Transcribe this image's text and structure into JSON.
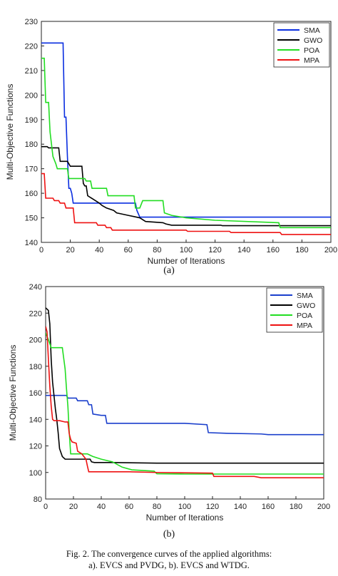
{
  "chart_data": [
    {
      "type": "line",
      "panel_label": "(a)",
      "xlabel": "Number of Iterations",
      "ylabel": "Multi-Objective Functions",
      "xlim": [
        0,
        200
      ],
      "ylim": [
        140,
        230
      ],
      "xticks": [
        0,
        20,
        40,
        60,
        80,
        100,
        120,
        140,
        160,
        180,
        200
      ],
      "yticks": [
        140,
        150,
        160,
        170,
        180,
        190,
        200,
        210,
        220,
        230
      ],
      "grid": false,
      "legend_position": "top-right",
      "series": [
        {
          "name": "SMA",
          "color": "#0a2ee0",
          "points": [
            [
              0,
              221.2
            ],
            [
              15,
              221.2
            ],
            [
              16,
              191
            ],
            [
              17,
              191
            ],
            [
              18,
              175
            ],
            [
              19,
              162
            ],
            [
              20,
              162
            ],
            [
              21,
              160
            ],
            [
              22,
              156
            ],
            [
              50,
              156
            ],
            [
              65,
              156
            ],
            [
              66,
              153
            ],
            [
              68,
              150.3
            ],
            [
              200,
              150.3
            ]
          ]
        },
        {
          "name": "GWO",
          "color": "#000000",
          "points": [
            [
              0,
              179
            ],
            [
              4,
              179
            ],
            [
              5,
              178.5
            ],
            [
              12,
              178.5
            ],
            [
              13,
              173
            ],
            [
              18,
              173
            ],
            [
              19,
              172
            ],
            [
              20,
              171
            ],
            [
              28,
              171
            ],
            [
              29,
              164
            ],
            [
              30,
              163
            ],
            [
              31,
              163
            ],
            [
              32,
              159
            ],
            [
              36,
              157.5
            ],
            [
              40,
              156
            ],
            [
              42,
              155
            ],
            [
              45,
              154
            ],
            [
              50,
              153
            ],
            [
              52,
              152
            ],
            [
              56,
              151.5
            ],
            [
              60,
              151
            ],
            [
              64,
              150.5
            ],
            [
              68,
              150
            ],
            [
              72,
              148.5
            ],
            [
              84,
              148
            ],
            [
              86,
              147.5
            ],
            [
              90,
              147
            ],
            [
              124,
              147
            ],
            [
              125,
              146.8
            ],
            [
              200,
              146.8
            ]
          ]
        },
        {
          "name": "POA",
          "color": "#22dd22",
          "points": [
            [
              0,
              215
            ],
            [
              2,
              215
            ],
            [
              3,
              197
            ],
            [
              5,
              197
            ],
            [
              6,
              185
            ],
            [
              7,
              180
            ],
            [
              8,
              175
            ],
            [
              10,
              172
            ],
            [
              11,
              170
            ],
            [
              14,
              170
            ],
            [
              18,
              170
            ],
            [
              19,
              166
            ],
            [
              30,
              166
            ],
            [
              31,
              165
            ],
            [
              32,
              165
            ],
            [
              34,
              165
            ],
            [
              35,
              162
            ],
            [
              45,
              162
            ],
            [
              46,
              159
            ],
            [
              64,
              159
            ],
            [
              65,
              154
            ],
            [
              68,
              154
            ],
            [
              70,
              157
            ],
            [
              84,
              157
            ],
            [
              85,
              152
            ],
            [
              90,
              151
            ],
            [
              100,
              150
            ],
            [
              120,
              149
            ],
            [
              164,
              148
            ],
            [
              165,
              146
            ],
            [
              200,
              146
            ]
          ]
        },
        {
          "name": "MPA",
          "color": "#ee1111",
          "points": [
            [
              0,
              168
            ],
            [
              2,
              168
            ],
            [
              3,
              158
            ],
            [
              8,
              158
            ],
            [
              9,
              157
            ],
            [
              12,
              157
            ],
            [
              13,
              156
            ],
            [
              16,
              156
            ],
            [
              17,
              154
            ],
            [
              22,
              154
            ],
            [
              23,
              148
            ],
            [
              38,
              148
            ],
            [
              39,
              147
            ],
            [
              44,
              147
            ],
            [
              45,
              146
            ],
            [
              48,
              146
            ],
            [
              49,
              145
            ],
            [
              100,
              145
            ],
            [
              101,
              144.5
            ],
            [
              130,
              144.5
            ],
            [
              131,
              144
            ],
            [
              165,
              144
            ],
            [
              166,
              143.2
            ],
            [
              200,
              143.2
            ]
          ]
        }
      ]
    },
    {
      "type": "line",
      "panel_label": "(b)",
      "xlabel": "Number of Iterations",
      "ylabel": "Multi-Objective Functions",
      "xlim": [
        0,
        200
      ],
      "ylim": [
        80,
        240
      ],
      "xticks": [
        0,
        20,
        40,
        60,
        80,
        100,
        120,
        140,
        160,
        180,
        200
      ],
      "yticks": [
        80,
        100,
        120,
        140,
        160,
        180,
        200,
        220,
        240
      ],
      "grid": false,
      "legend_position": "top-right",
      "series": [
        {
          "name": "SMA",
          "color": "#1a3fcc",
          "points": [
            [
              0,
              158
            ],
            [
              15,
              158
            ],
            [
              16,
              156
            ],
            [
              22,
              156
            ],
            [
              23,
              154
            ],
            [
              30,
              154
            ],
            [
              31,
              151
            ],
            [
              33,
              151
            ],
            [
              34,
              144
            ],
            [
              40,
              143
            ],
            [
              43,
              143
            ],
            [
              44,
              137
            ],
            [
              100,
              137
            ],
            [
              116,
              136
            ],
            [
              117,
              130
            ],
            [
              130,
              129.5
            ],
            [
              155,
              129
            ],
            [
              160,
              128.5
            ],
            [
              200,
              128.5
            ]
          ]
        },
        {
          "name": "GWO",
          "color": "#000000",
          "points": [
            [
              0,
              224
            ],
            [
              2,
              222
            ],
            [
              3,
              212
            ],
            [
              4,
              185
            ],
            [
              5,
              168
            ],
            [
              6,
              158
            ],
            [
              7,
              148
            ],
            [
              8,
              140
            ],
            [
              9,
              130
            ],
            [
              10,
              118
            ],
            [
              12,
              112
            ],
            [
              14,
              110
            ],
            [
              32,
              110
            ],
            [
              33,
              108
            ],
            [
              35,
              107.5
            ],
            [
              48,
              107.5
            ],
            [
              80,
              107
            ],
            [
              200,
              107
            ]
          ]
        },
        {
          "name": "POA",
          "color": "#22dd22",
          "points": [
            [
              0,
              205
            ],
            [
              2,
              200
            ],
            [
              4,
              194
            ],
            [
              12,
              194
            ],
            [
              14,
              178
            ],
            [
              15,
              163
            ],
            [
              16,
              150
            ],
            [
              17,
              130
            ],
            [
              18,
              114
            ],
            [
              30,
              114
            ],
            [
              34,
              112
            ],
            [
              40,
              110
            ],
            [
              48,
              108
            ],
            [
              55,
              104
            ],
            [
              62,
              102
            ],
            [
              78,
              101
            ],
            [
              80,
              99
            ],
            [
              100,
              98.8
            ],
            [
              200,
              98.8
            ]
          ]
        },
        {
          "name": "MPA",
          "color": "#ee1111",
          "points": [
            [
              0,
              210
            ],
            [
              1,
              206
            ],
            [
              2,
              185
            ],
            [
              3,
              165
            ],
            [
              4,
              150
            ],
            [
              5,
              140
            ],
            [
              6,
              139
            ],
            [
              10,
              139
            ],
            [
              14,
              138
            ],
            [
              16,
              138
            ],
            [
              17,
              129
            ],
            [
              18,
              125
            ],
            [
              19,
              123
            ],
            [
              22,
              122
            ],
            [
              23,
              116
            ],
            [
              26,
              114
            ],
            [
              29,
              110
            ],
            [
              30,
              105
            ],
            [
              31,
              100.5
            ],
            [
              60,
              100.5
            ],
            [
              80,
              100
            ],
            [
              120,
              99.5
            ],
            [
              121,
              97
            ],
            [
              130,
              97
            ],
            [
              150,
              97
            ],
            [
              155,
              96
            ],
            [
              200,
              96
            ]
          ]
        }
      ]
    }
  ],
  "captions": {
    "label_a": "(a)",
    "label_b": "(b)",
    "line1": "Fig. 2. The convergence curves of the applied algorithms:",
    "line2": "a). EVCS and PVDG, b). EVCS and WTDG."
  }
}
